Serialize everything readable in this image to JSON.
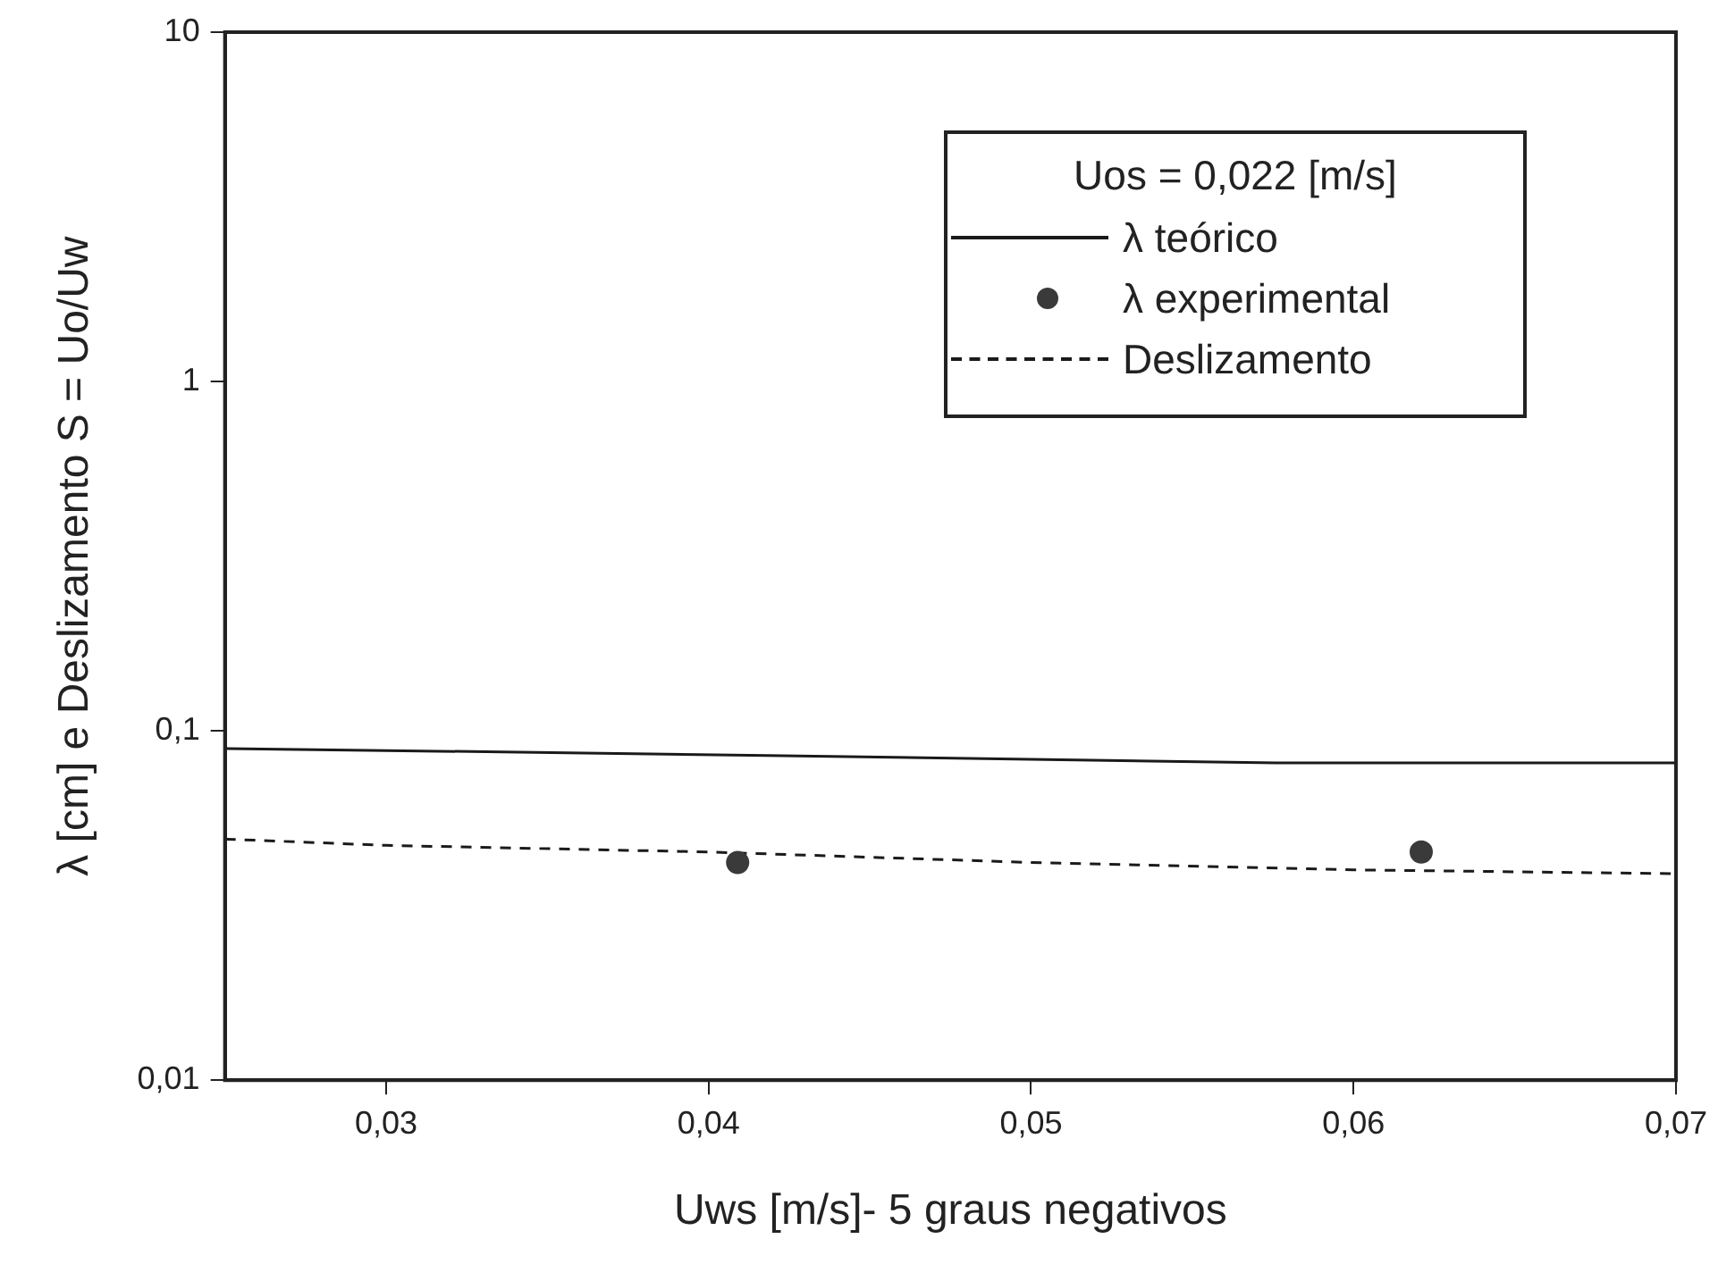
{
  "chart_data": {
    "type": "line",
    "xlabel": "Uws [m/s]- 5 graus negativos",
    "ylabel": "λ [cm] e Deslizamento S = Uo/Uw",
    "legend_title": "Uos = 0,022 [m/s]",
    "legend": "top right",
    "log": "y",
    "xlim": [
      0.025,
      0.07
    ],
    "xticks": [
      {
        "value": 0.03,
        "label": "0,03"
      },
      {
        "value": 0.04,
        "label": "0,04"
      },
      {
        "value": 0.05,
        "label": "0,05"
      },
      {
        "value": 0.06,
        "label": "0,06"
      },
      {
        "value": 0.07,
        "label": "0,07"
      }
    ],
    "ylim": [
      0.01,
      10
    ],
    "yticks": [
      {
        "value": 0.01,
        "label": "0,01"
      },
      {
        "value": 0.1,
        "label": "0,1"
      },
      1,
      10
    ],
    "series": [
      {
        "name": "λ teórico",
        "color": "#1a1a1a",
        "marker": "none",
        "line_style": "solid",
        "x": [
          0.025,
          0.0336,
          0.0418,
          0.0495,
          0.0576,
          0.07
        ],
        "values": [
          0.089,
          0.087,
          0.085,
          0.083,
          0.081,
          0.081
        ]
      },
      {
        "name": "λ experimental",
        "type": "scatter",
        "color": "#3a3a3a",
        "marker": "circle",
        "x": [
          0.0409,
          0.0621
        ],
        "values": [
          0.042,
          0.045
        ]
      },
      {
        "name": "Deslizamento",
        "color": "#1a1a1a",
        "marker": "none",
        "line_style": "dashed",
        "x": [
          0.025,
          0.03,
          0.04,
          0.05,
          0.06,
          0.07
        ],
        "values": [
          0.049,
          0.047,
          0.045,
          0.042,
          0.04,
          0.039
        ]
      }
    ]
  }
}
